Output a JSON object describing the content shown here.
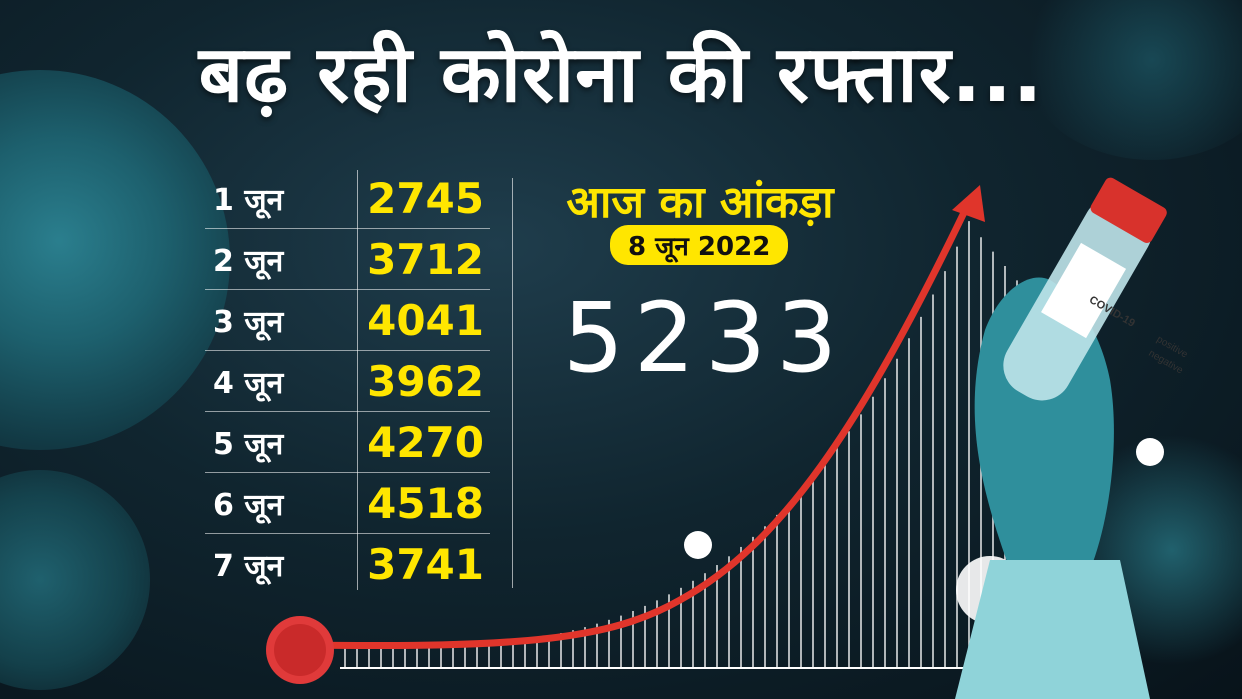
{
  "headline": "बढ़ रही कोरोना की रफ्तार...",
  "daily_cases": [
    {
      "date": "1 जून",
      "count": "2745"
    },
    {
      "date": "2 जून",
      "count": "3712"
    },
    {
      "date": "3 जून",
      "count": "4041"
    },
    {
      "date": "4 जून",
      "count": "3962"
    },
    {
      "date": "5 जून",
      "count": "4270"
    },
    {
      "date": "6 जून",
      "count": "4518"
    },
    {
      "date": "7 जून",
      "count": "3741"
    }
  ],
  "today": {
    "label": "आज का आंकड़ा",
    "date": "8 जून 2022",
    "count": "5233"
  },
  "test_tube": {
    "label": "COVID-19",
    "option_positive": "positive",
    "option_negative": "negative"
  },
  "colors": {
    "accent": "#ffe600",
    "arrow": "#e0352b",
    "glove": "#2f8f9c"
  }
}
